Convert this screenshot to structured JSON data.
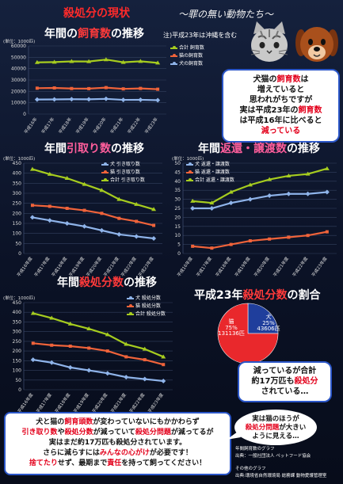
{
  "header": {
    "title": "殺処分の現状",
    "subtitle": "〜罪の無い動物たち〜",
    "cat_icon": "cat-face-icon",
    "dog_icon": "dog-face-icon"
  },
  "colors": {
    "total": "#a6cc1f",
    "cat": "#f0633a",
    "dog": "#8fb4ea",
    "pie_cat": "#e9282c",
    "pie_dog": "#1f3e9c",
    "accent_red": "#ff2a2a"
  },
  "chart_data": [
    {
      "id": "breeding",
      "type": "line",
      "title_pre": "年間の",
      "title_em": "飼育数",
      "title_post": "の推移",
      "note": "注)平成23年は沖縄を含む",
      "unit": "(単位：1000匹)",
      "categories": [
        "平成16年",
        "平成17年",
        "平成18年",
        "平成19年",
        "平成20年",
        "平成21年",
        "平成22年",
        "平成23年"
      ],
      "ylim": [
        0,
        60000
      ],
      "yticks": [
        0,
        10000,
        20000,
        30000,
        40000,
        50000,
        60000
      ],
      "series": [
        {
          "name": "合計 飼育数",
          "key": "total",
          "values": [
            45500,
            45800,
            46400,
            46300,
            48000,
            45600,
            46500,
            45100
          ]
        },
        {
          "name": "猫の飼育数",
          "key": "cat",
          "values": [
            22800,
            23000,
            22500,
            22400,
            23300,
            22200,
            22600,
            21900
          ]
        },
        {
          "name": "犬の飼育数",
          "key": "dog",
          "values": [
            12800,
            12900,
            13100,
            13000,
            13400,
            12500,
            12600,
            12200
          ]
        }
      ]
    },
    {
      "id": "intake",
      "type": "line",
      "title_pre": "年間",
      "title_em": "引取り数",
      "title_post": "の推移",
      "unit": "(単位：1000匹)",
      "categories": [
        "平成16年度",
        "平成17年度",
        "平成18年度",
        "平成19年度",
        "平成20年度",
        "平成21年度",
        "平成22年度",
        "平成23年度"
      ],
      "ylim": [
        0,
        450
      ],
      "yticks": [
        0,
        50,
        100,
        150,
        200,
        250,
        300,
        350,
        400,
        450
      ],
      "series": [
        {
          "name": "犬 引き取り数",
          "key": "dog",
          "values": [
            180,
            165,
            150,
            135,
            115,
            95,
            85,
            75
          ]
        },
        {
          "name": "猫 引き取り数",
          "key": "cat",
          "values": [
            240,
            235,
            225,
            215,
            200,
            175,
            160,
            140
          ]
        },
        {
          "name": "合計 引き取り数",
          "key": "total",
          "values": [
            420,
            395,
            375,
            345,
            315,
            270,
            245,
            220
          ]
        }
      ]
    },
    {
      "id": "return",
      "type": "line",
      "title_pre": "年間",
      "title_em": "返還・譲渡数",
      "title_post": "の推移",
      "unit": "(単位：1000匹)",
      "categories": [
        "平成16年度",
        "平成17年度",
        "平成18年度",
        "平成19年度",
        "平成20年度",
        "平成21年度",
        "平成22年度",
        "平成23年度"
      ],
      "ylim": [
        0,
        50
      ],
      "yticks": [
        0,
        5,
        10,
        15,
        20,
        25,
        30,
        35,
        40,
        45,
        50
      ],
      "series": [
        {
          "name": "犬 返還・譲渡数",
          "key": "dog",
          "values": [
            25,
            25,
            28,
            30,
            32,
            33,
            33,
            34
          ]
        },
        {
          "name": "猫 返還・譲渡数",
          "key": "cat",
          "values": [
            4,
            3,
            5,
            7,
            8,
            9,
            10,
            12
          ]
        },
        {
          "name": "合計 返還・譲渡数",
          "key": "total",
          "values": [
            29,
            28,
            34,
            38,
            41,
            43,
            44,
            47
          ]
        }
      ]
    },
    {
      "id": "euthanasia",
      "type": "line",
      "title_pre": "年間",
      "title_em": "殺処分数",
      "title_post": "の推移",
      "unit": "(単位：1000匹)",
      "categories": [
        "平成16年度",
        "平成17年度",
        "平成18年度",
        "平成19年度",
        "平成20年度",
        "平成21年度",
        "平成22年度",
        "平成23年度"
      ],
      "ylim": [
        0,
        450
      ],
      "yticks": [
        0,
        50,
        100,
        150,
        200,
        250,
        300,
        350,
        400,
        450
      ],
      "series": [
        {
          "name": "犬 殺処分数",
          "key": "dog",
          "values": [
            155,
            140,
            115,
            100,
            85,
            65,
            55,
            45
          ]
        },
        {
          "name": "猫 殺処分数",
          "key": "cat",
          "values": [
            240,
            230,
            225,
            215,
            200,
            170,
            155,
            130
          ]
        },
        {
          "name": "合計 殺処分数",
          "key": "total",
          "values": [
            395,
            370,
            340,
            315,
            285,
            235,
            210,
            170
          ]
        }
      ]
    },
    {
      "id": "share",
      "type": "pie",
      "title_pre": "平成23年",
      "title_em": "殺処分数",
      "title_post": "の割合",
      "slices": [
        {
          "label": "猫",
          "percent": "75%",
          "count": "131136匹",
          "value": 131136,
          "key": "pie_cat"
        },
        {
          "label": "犬",
          "percent": "25%",
          "count": "43606匹",
          "value": 43606,
          "key": "pie_dog"
        }
      ]
    }
  ],
  "annotation1": {
    "line1_pre": "犬猫の",
    "line1_em": "飼育数",
    "line1_post": "は",
    "line2": "増えていると",
    "line3": "思われがちですが",
    "line4_pre": "実は平成23年の",
    "line4_em": "飼育数",
    "line5": "は平成16年に比べると",
    "line6": "減っている"
  },
  "annotation2": {
    "line1": "減っているが合計",
    "line2_pre": "約17万匹も",
    "line2_em": "殺処分",
    "line3": "されている…"
  },
  "bottom": {
    "l1_a": "犬と猫の",
    "l1_b": "飼育頭数",
    "l1_c": "が変わっていないにもかかわらず",
    "l2_a": "引き取り数",
    "l2_b": "や",
    "l2_c": "殺処分数",
    "l2_d": "が減っていて",
    "l2_e": "殺処分問題",
    "l2_f": "が減ってるが",
    "l3": "実はまだ約17万匹も殺処分されています。",
    "l4_a": "さらに減らすには",
    "l4_b": "みんなの心がけ",
    "l4_c": "が必要です！",
    "l5_a": "捨てたり",
    "l5_b": "せず、最期まで",
    "l5_c": "責任",
    "l5_d": "を持って飼ってください！"
  },
  "bubble": {
    "l1": "実は猫のほうが",
    "l2_em": "殺処分問題",
    "l2_post": "が大きい",
    "l3": "ように見える…"
  },
  "sources": {
    "s1": "年間飼育数のグラフ",
    "s2": "出典：一般社団法人 ペットフード協会",
    "s3": "その他のグラフ",
    "s4": "出典:環境省自然環境局 総務課 動物愛護管理室"
  }
}
